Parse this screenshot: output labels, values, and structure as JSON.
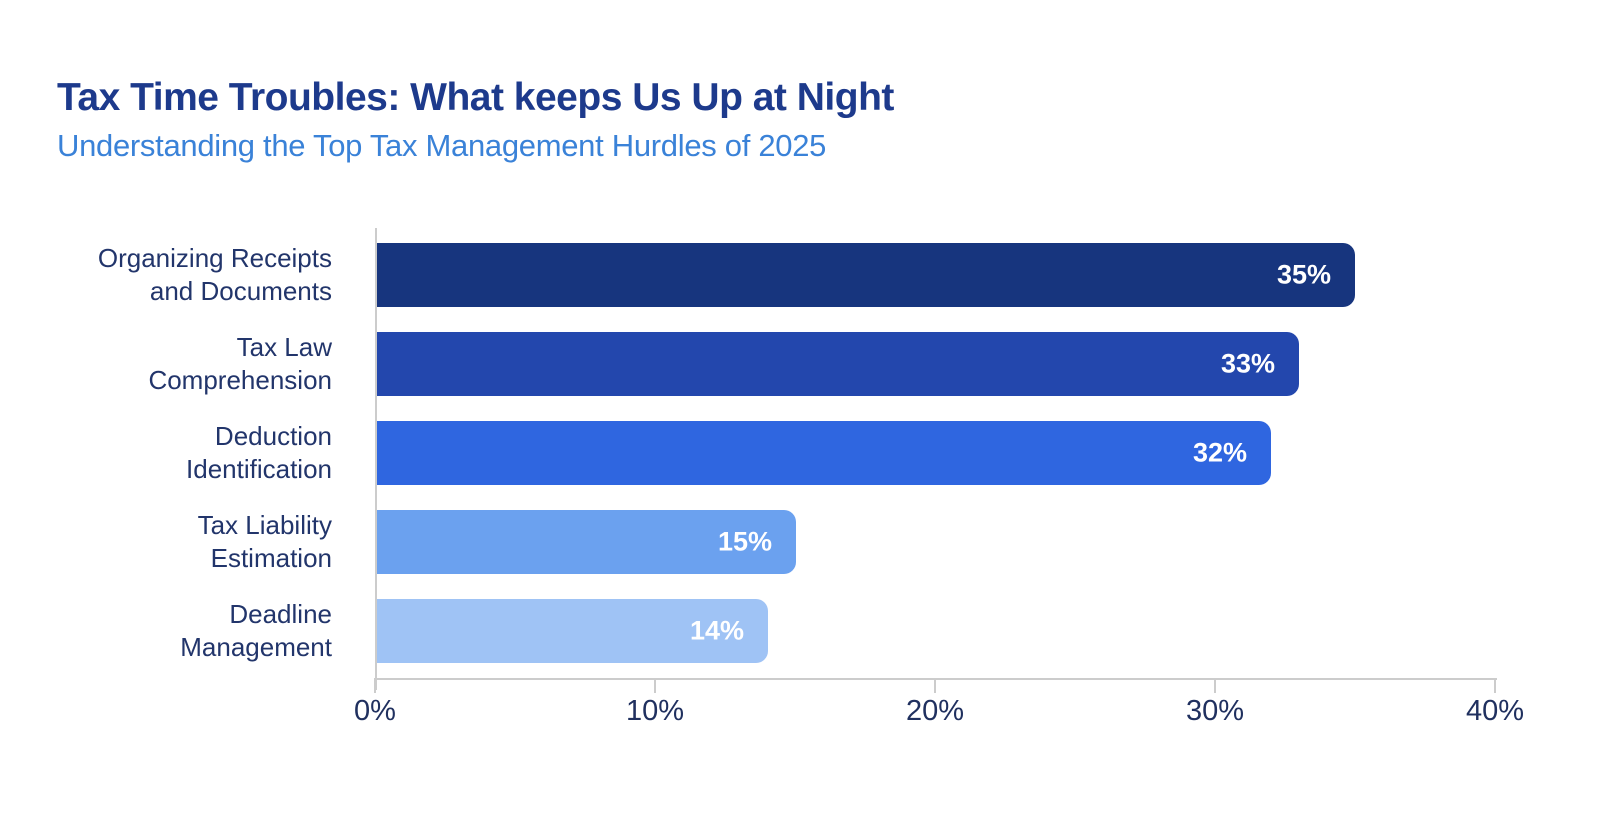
{
  "header": {
    "title": "Tax Time Troubles: What keeps Us Up at Night",
    "subtitle": "Understanding the Top Tax Management Hurdles of 2025"
  },
  "colors": {
    "background": "#ffffff",
    "title": "#1d3a8c",
    "subtitle": "#3a82d8",
    "category_label": "#22356b",
    "tick_label": "#20305f",
    "axis_line": "#cccccc",
    "value_label": "#ffffff",
    "bars": [
      "#17357e",
      "#2347ad",
      "#2f66e0",
      "#6ba1ef",
      "#9fc3f5"
    ]
  },
  "chart_data": {
    "type": "bar",
    "orientation": "horizontal",
    "title": "Tax Time Troubles: What keeps Us Up at Night",
    "subtitle": "Understanding the Top Tax Management Hurdles of 2025",
    "categories": [
      "Organizing Receipts\nand Documents",
      "Tax Law\nComprehension",
      "Deduction\nIdentification",
      "Tax Liability\nEstimation",
      "Deadline\nManagement"
    ],
    "values": [
      35,
      33,
      32,
      15,
      14
    ],
    "value_labels": [
      "35%",
      "33%",
      "32%",
      "15%",
      "14%"
    ],
    "value_label_position": "inside-right",
    "xlabel": "",
    "ylabel": "",
    "xlim": [
      0,
      40
    ],
    "x_ticks": [
      0,
      10,
      20,
      30,
      40
    ],
    "x_tick_labels": [
      "0%",
      "10%",
      "20%",
      "30%",
      "40%"
    ],
    "grid": false,
    "legend": "none"
  }
}
